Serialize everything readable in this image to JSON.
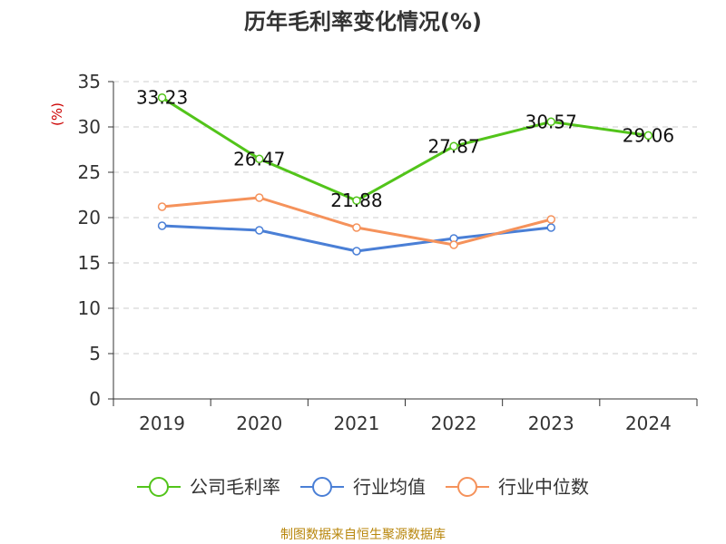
{
  "chart_data": {
    "type": "line",
    "title": "历年毛利率变化情况(%)",
    "ylabel": "(%)",
    "ylim": [
      0,
      35
    ],
    "yticks": [
      0,
      5,
      10,
      15,
      20,
      25,
      30,
      35
    ],
    "grid": true,
    "legend_position": "bottom",
    "categories": [
      "2019",
      "2020",
      "2021",
      "2022",
      "2023",
      "2024"
    ],
    "series": [
      {
        "name": "公司毛利率",
        "color": "#52c41a",
        "values": [
          33.23,
          26.47,
          21.88,
          27.87,
          30.57,
          29.06
        ],
        "labels": [
          "33.23",
          "26.47",
          "21.88",
          "27.87",
          "30.57",
          "29.06"
        ]
      },
      {
        "name": "行业均值",
        "color": "#4a7fd6",
        "values": [
          19.1,
          18.6,
          16.3,
          17.7,
          18.9,
          null
        ]
      },
      {
        "name": "行业中位数",
        "color": "#f5925b",
        "values": [
          21.2,
          22.2,
          18.9,
          17.0,
          19.8,
          null
        ]
      }
    ]
  },
  "source": "制图数据来自恒生聚源数据库"
}
